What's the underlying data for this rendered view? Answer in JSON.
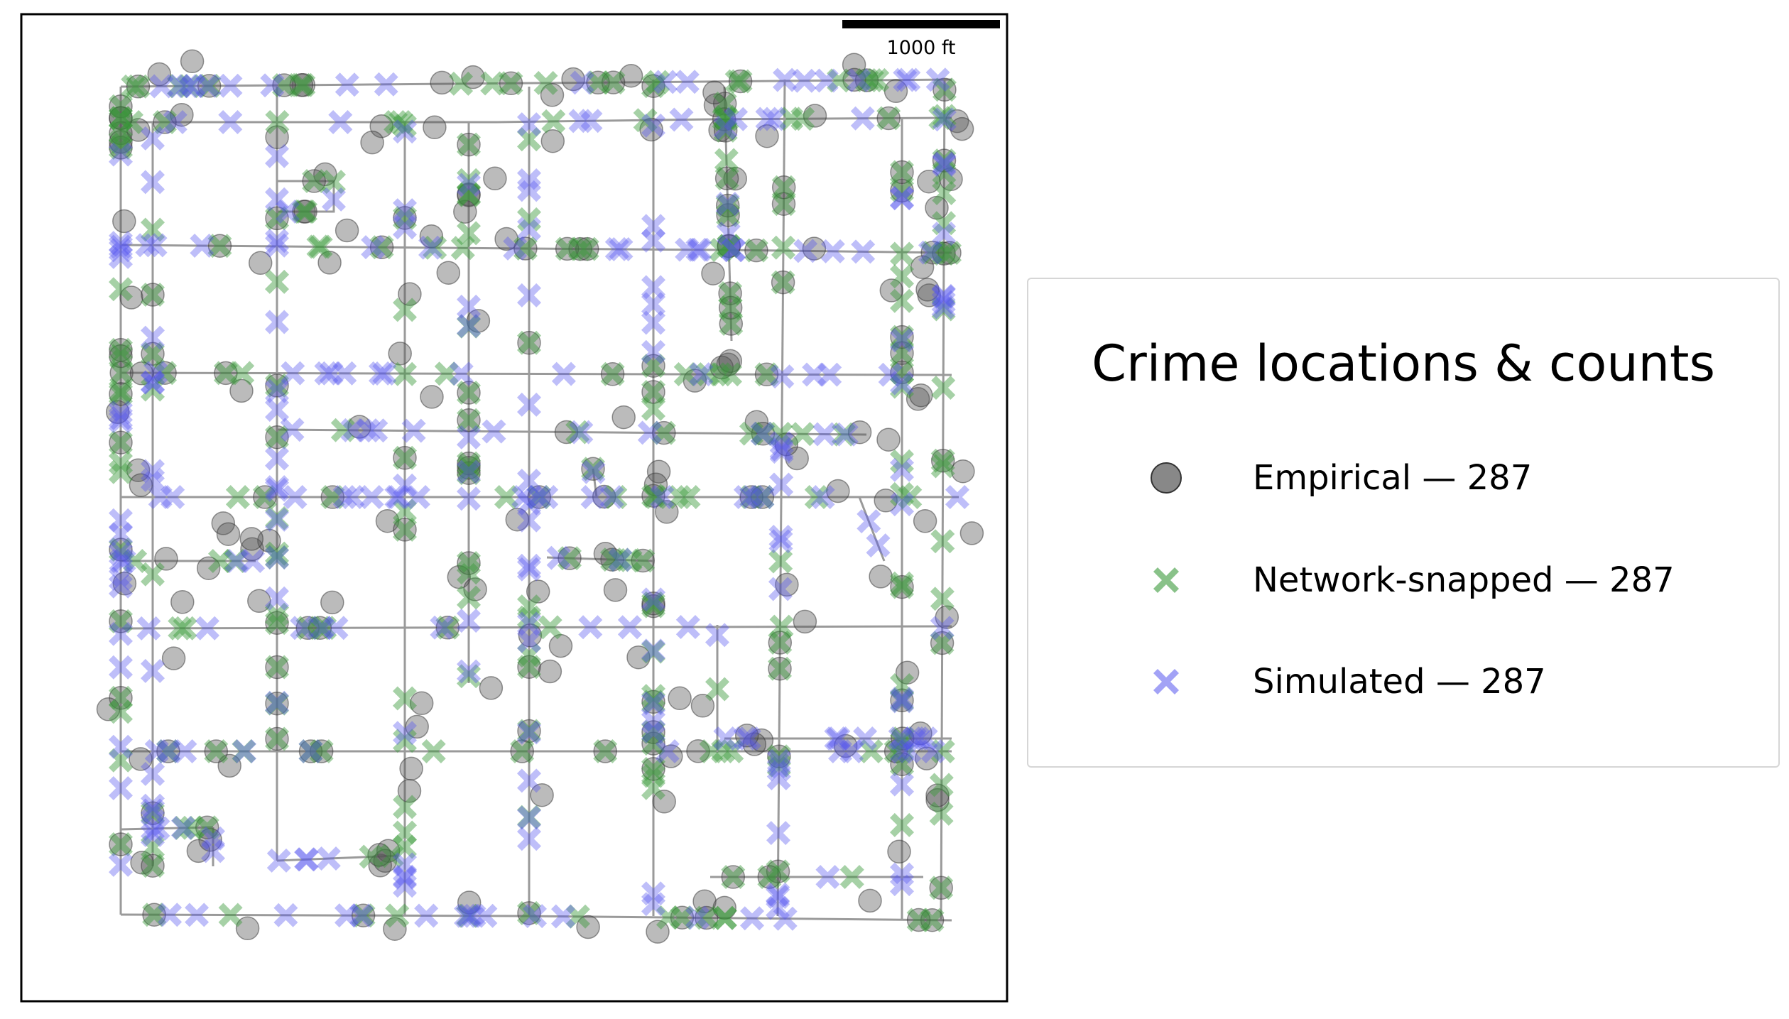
{
  "scale_bar": {
    "label": "1000 ft"
  },
  "legend": {
    "title": "Crime locations & counts",
    "items": [
      {
        "label": "Empirical — 287",
        "kind": "empirical"
      },
      {
        "label": "Network-snapped — 287",
        "kind": "snapped"
      },
      {
        "label": "Simulated — 287",
        "kind": "simulated"
      }
    ]
  },
  "colors": {
    "empirical": "#555555",
    "snapped": "#3a9a3a",
    "simulated": "#5555ee",
    "street": "#9a9a9a",
    "frame": "#000000"
  },
  "counts": {
    "empirical": 287,
    "snapped": 287,
    "simulated": 287
  }
}
